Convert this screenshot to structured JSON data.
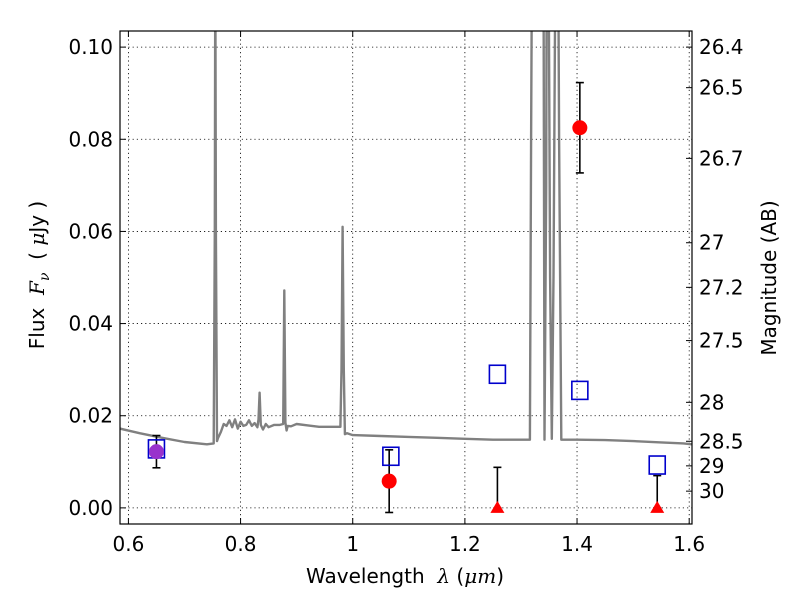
{
  "chart_data": {
    "type": "scatter",
    "title": "",
    "xlabel": {
      "prefix": "Wavelength  ",
      "symbol": "λ",
      "unit_open": " (",
      "unit": "μm",
      "unit_close": ")"
    },
    "ylabel": {
      "prefix": "Flux  ",
      "symbol": "F",
      "subscript": "ν",
      "unit_open": "  ( ",
      "unit_mu": "μ",
      "unit": "Jy )"
    },
    "y2label": "Magnitude (AB)",
    "xlim": [
      0.585,
      1.605
    ],
    "ylim": [
      -0.0035,
      0.1035
    ],
    "grid": true,
    "x_ticks": [
      {
        "value": 0.6,
        "label": "0.6"
      },
      {
        "value": 0.8,
        "label": "0.8"
      },
      {
        "value": 1.0,
        "label": "1"
      },
      {
        "value": 1.2,
        "label": "1.2"
      },
      {
        "value": 1.4,
        "label": "1.4"
      },
      {
        "value": 1.6,
        "label": "1.6"
      }
    ],
    "y_ticks": [
      {
        "value": 0.0,
        "label": "0.00"
      },
      {
        "value": 0.02,
        "label": "0.02"
      },
      {
        "value": 0.04,
        "label": "0.04"
      },
      {
        "value": 0.06,
        "label": "0.06"
      },
      {
        "value": 0.08,
        "label": "0.08"
      },
      {
        "value": 0.1,
        "label": "0.10"
      }
    ],
    "y2_ticks": [
      {
        "mag": 26.4,
        "label": "26.4"
      },
      {
        "mag": 26.5,
        "label": "26.5"
      },
      {
        "mag": 26.7,
        "label": "26.7"
      },
      {
        "mag": 27,
        "label": "27"
      },
      {
        "mag": 27.2,
        "label": "27.2"
      },
      {
        "mag": 27.5,
        "label": "27.5"
      },
      {
        "mag": 28,
        "label": "28"
      },
      {
        "mag": 28.5,
        "label": "28.5"
      },
      {
        "mag": 29,
        "label": "29"
      },
      {
        "mag": 30,
        "label": "30"
      }
    ],
    "series": [
      {
        "kind": "model_spectrum",
        "color": "#808080",
        "x": [
          0.585,
          0.62,
          0.66,
          0.7,
          0.74,
          0.752,
          0.754,
          0.755,
          0.756,
          0.758,
          0.76,
          0.765,
          0.77,
          0.775,
          0.78,
          0.785,
          0.79,
          0.795,
          0.8,
          0.805,
          0.81,
          0.815,
          0.82,
          0.825,
          0.83,
          0.832,
          0.834,
          0.836,
          0.84,
          0.845,
          0.85,
          0.86,
          0.87,
          0.876,
          0.878,
          0.88,
          0.882,
          0.884,
          0.89,
          0.9,
          0.92,
          0.94,
          0.96,
          0.978,
          0.98,
          0.982,
          0.984,
          0.986,
          0.99,
          1.0,
          1.05,
          1.1,
          1.15,
          1.2,
          1.25,
          1.3,
          1.316,
          1.318,
          1.32,
          1.33,
          1.34,
          1.341,
          1.342,
          1.345,
          1.346,
          1.347,
          1.348,
          1.349,
          1.352,
          1.355,
          1.358,
          1.362,
          1.364,
          1.366,
          1.368,
          1.372,
          1.4,
          1.45,
          1.5,
          1.55,
          1.59,
          1.605
        ],
        "y": [
          0.0172,
          0.0162,
          0.0152,
          0.0143,
          0.0138,
          0.014,
          0.06,
          0.12,
          0.06,
          0.0145,
          0.0152,
          0.0165,
          0.0182,
          0.0178,
          0.019,
          0.0175,
          0.0192,
          0.0172,
          0.0187,
          0.0178,
          0.018,
          0.019,
          0.0178,
          0.0184,
          0.0175,
          0.0192,
          0.025,
          0.018,
          0.017,
          0.0182,
          0.0175,
          0.018,
          0.018,
          0.0182,
          0.0472,
          0.0185,
          0.0168,
          0.0178,
          0.0177,
          0.0182,
          0.0179,
          0.0176,
          0.0176,
          0.0176,
          0.03,
          0.061,
          0.03,
          0.016,
          0.0162,
          0.0158,
          0.0156,
          0.0154,
          0.0152,
          0.015,
          0.0148,
          0.0148,
          0.0148,
          0.08,
          0.13,
          0.13,
          0.13,
          0.07,
          0.0148,
          0.07,
          0.13,
          0.13,
          0.13,
          0.13,
          0.05,
          0.015,
          0.05,
          0.13,
          0.13,
          0.13,
          0.08,
          0.0148,
          0.0148,
          0.0147,
          0.0145,
          0.0142,
          0.014,
          0.0138
        ]
      },
      {
        "kind": "observed_detections",
        "color": "#ff0000",
        "points": [
          {
            "x": 0.65,
            "y": 0.0122,
            "err": 0.0035
          },
          {
            "x": 1.065,
            "y": 0.0058,
            "err": 0.0068
          },
          {
            "x": 1.405,
            "y": 0.0825,
            "err": 0.0098
          }
        ]
      },
      {
        "kind": "observed_upper_limits",
        "color": "#ff0000",
        "points": [
          {
            "x": 1.258,
            "y": 0.0,
            "err_hi": 0.0088
          },
          {
            "x": 1.543,
            "y": 0.0,
            "err_hi": 0.007
          }
        ]
      },
      {
        "kind": "model_photometry",
        "color": "#0000cc",
        "points": [
          {
            "x": 0.65,
            "y": 0.0128
          },
          {
            "x": 1.068,
            "y": 0.0112
          },
          {
            "x": 1.258,
            "y": 0.029
          },
          {
            "x": 1.405,
            "y": 0.0255
          },
          {
            "x": 1.543,
            "y": 0.0093
          }
        ]
      }
    ],
    "overlap_marker_color": "#9932cc"
  }
}
